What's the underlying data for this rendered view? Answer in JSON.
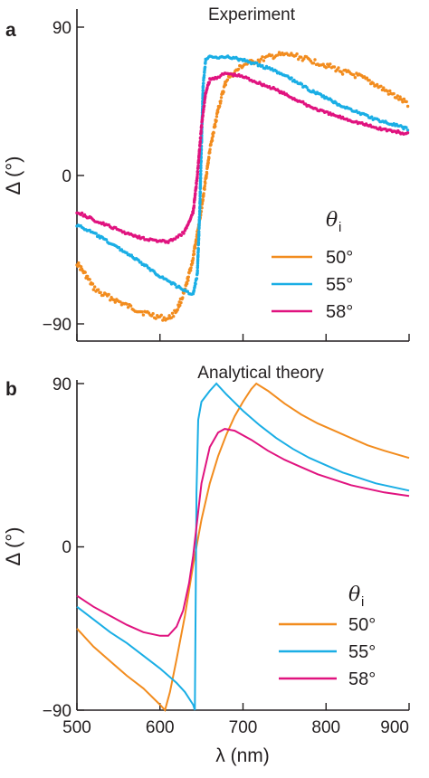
{
  "chart_data": [
    {
      "panel_label": "a",
      "type": "scatter",
      "title": "Experiment",
      "xlabel": "",
      "ylabel": "Δ (°)",
      "xlim": [
        500,
        900
      ],
      "ylim": [
        -100,
        95
      ],
      "x_ticks": [
        500,
        600,
        700,
        800,
        900
      ],
      "y_ticks": [
        -90,
        0,
        90
      ],
      "y_tick_labels": [
        "−90",
        "0",
        "90"
      ],
      "legend": {
        "title": "θ",
        "title_subscript": "i",
        "placement": "right"
      },
      "series": [
        {
          "name": "50°",
          "color": "#f28c1e",
          "points": [
            [
              500,
              -53
            ],
            [
              510,
              -60
            ],
            [
              520,
              -68
            ],
            [
              530,
              -72
            ],
            [
              540,
              -74
            ],
            [
              560,
              -79
            ],
            [
              580,
              -83
            ],
            [
              600,
              -86
            ],
            [
              610,
              -87
            ],
            [
              620,
              -82
            ],
            [
              630,
              -70
            ],
            [
              640,
              -50
            ],
            [
              650,
              -20
            ],
            [
              660,
              15
            ],
            [
              670,
              40
            ],
            [
              680,
              58
            ],
            [
              700,
              67
            ],
            [
              720,
              70
            ],
            [
              740,
              73
            ],
            [
              760,
              73
            ],
            [
              780,
              70
            ],
            [
              800,
              67
            ],
            [
              820,
              63
            ],
            [
              840,
              60
            ],
            [
              860,
              55
            ],
            [
              880,
              49
            ],
            [
              900,
              43
            ]
          ]
        },
        {
          "name": "55°",
          "color": "#1aaee5",
          "points": [
            [
              500,
              -30
            ],
            [
              520,
              -35
            ],
            [
              540,
              -41
            ],
            [
              560,
              -47
            ],
            [
              580,
              -54
            ],
            [
              600,
              -61
            ],
            [
              620,
              -67
            ],
            [
              630,
              -70
            ],
            [
              640,
              -72
            ],
            [
              645,
              -60
            ],
            [
              648,
              -20
            ],
            [
              650,
              20
            ],
            [
              652,
              55
            ],
            [
              655,
              70
            ],
            [
              660,
              72
            ],
            [
              680,
              72
            ],
            [
              700,
              70
            ],
            [
              720,
              67
            ],
            [
              740,
              63
            ],
            [
              760,
              58
            ],
            [
              780,
              52
            ],
            [
              800,
              47
            ],
            [
              820,
              42
            ],
            [
              840,
              38
            ],
            [
              860,
              34
            ],
            [
              880,
              31
            ],
            [
              900,
              28
            ]
          ]
        },
        {
          "name": "58°",
          "color": "#e0137f",
          "points": [
            [
              500,
              -22
            ],
            [
              520,
              -27
            ],
            [
              540,
              -31
            ],
            [
              560,
              -35
            ],
            [
              580,
              -38
            ],
            [
              600,
              -40
            ],
            [
              610,
              -40
            ],
            [
              620,
              -38
            ],
            [
              630,
              -34
            ],
            [
              640,
              -22
            ],
            [
              645,
              0
            ],
            [
              650,
              30
            ],
            [
              655,
              50
            ],
            [
              660,
              58
            ],
            [
              680,
              62
            ],
            [
              700,
              60
            ],
            [
              720,
              56
            ],
            [
              740,
              52
            ],
            [
              760,
              47
            ],
            [
              780,
              42
            ],
            [
              800,
              38
            ],
            [
              820,
              35
            ],
            [
              840,
              32
            ],
            [
              860,
              29
            ],
            [
              880,
              27
            ],
            [
              900,
              25
            ]
          ]
        }
      ]
    },
    {
      "panel_label": "b",
      "type": "line",
      "title": "Analytical theory",
      "xlabel": "λ (nm)",
      "ylabel": "Δ (°)",
      "xlim": [
        500,
        900
      ],
      "ylim": [
        -90,
        90
      ],
      "x_ticks": [
        500,
        600,
        700,
        800,
        900
      ],
      "y_ticks": [
        -90,
        0,
        90
      ],
      "y_tick_labels": [
        "−90",
        "0",
        "90"
      ],
      "legend": {
        "title": "θ",
        "title_subscript": "i",
        "placement": "right"
      },
      "series": [
        {
          "name": "50°",
          "color": "#f28c1e",
          "points": [
            [
              500,
              -45
            ],
            [
              520,
              -55
            ],
            [
              540,
              -63
            ],
            [
              560,
              -71
            ],
            [
              580,
              -78
            ],
            [
              600,
              -87
            ],
            [
              606,
              -90
            ],
            [
              612,
              -80
            ],
            [
              620,
              -62
            ],
            [
              630,
              -38
            ],
            [
              640,
              -10
            ],
            [
              650,
              15
            ],
            [
              660,
              35
            ],
            [
              670,
              50
            ],
            [
              680,
              62
            ],
            [
              690,
              72
            ],
            [
              700,
              80
            ],
            [
              710,
              87
            ],
            [
              716,
              90
            ],
            [
              730,
              86
            ],
            [
              750,
              79
            ],
            [
              770,
              73
            ],
            [
              790,
              68
            ],
            [
              810,
              64
            ],
            [
              830,
              60
            ],
            [
              850,
              56
            ],
            [
              870,
              53
            ],
            [
              900,
              49
            ]
          ]
        },
        {
          "name": "55°",
          "color": "#1aaee5",
          "points": [
            [
              500,
              -33
            ],
            [
              520,
              -40
            ],
            [
              540,
              -47
            ],
            [
              560,
              -53
            ],
            [
              580,
              -60
            ],
            [
              600,
              -67
            ],
            [
              620,
              -75
            ],
            [
              630,
              -80
            ],
            [
              640,
              -87
            ],
            [
              642,
              -90
            ],
            [
              643,
              -30
            ],
            [
              644,
              30
            ],
            [
              646,
              70
            ],
            [
              650,
              80
            ],
            [
              660,
              86
            ],
            [
              668,
              90
            ],
            [
              680,
              84
            ],
            [
              700,
              75
            ],
            [
              720,
              67
            ],
            [
              740,
              60
            ],
            [
              760,
              54
            ],
            [
              780,
              49
            ],
            [
              800,
              45
            ],
            [
              820,
              41
            ],
            [
              840,
              38
            ],
            [
              860,
              35
            ],
            [
              880,
              33
            ],
            [
              900,
              31
            ]
          ]
        },
        {
          "name": "58°",
          "color": "#e0137f",
          "points": [
            [
              500,
              -27
            ],
            [
              520,
              -33
            ],
            [
              540,
              -38
            ],
            [
              560,
              -43
            ],
            [
              580,
              -47
            ],
            [
              600,
              -49
            ],
            [
              610,
              -49
            ],
            [
              620,
              -44
            ],
            [
              628,
              -35
            ],
            [
              635,
              -20
            ],
            [
              640,
              -5
            ],
            [
              645,
              15
            ],
            [
              650,
              35
            ],
            [
              660,
              55
            ],
            [
              670,
              63
            ],
            [
              678,
              65
            ],
            [
              690,
              64
            ],
            [
              710,
              59
            ],
            [
              730,
              53
            ],
            [
              750,
              48
            ],
            [
              770,
              44
            ],
            [
              790,
              40
            ],
            [
              810,
              37
            ],
            [
              830,
              34
            ],
            [
              850,
              32
            ],
            [
              870,
              30
            ],
            [
              900,
              28
            ]
          ]
        }
      ]
    }
  ]
}
